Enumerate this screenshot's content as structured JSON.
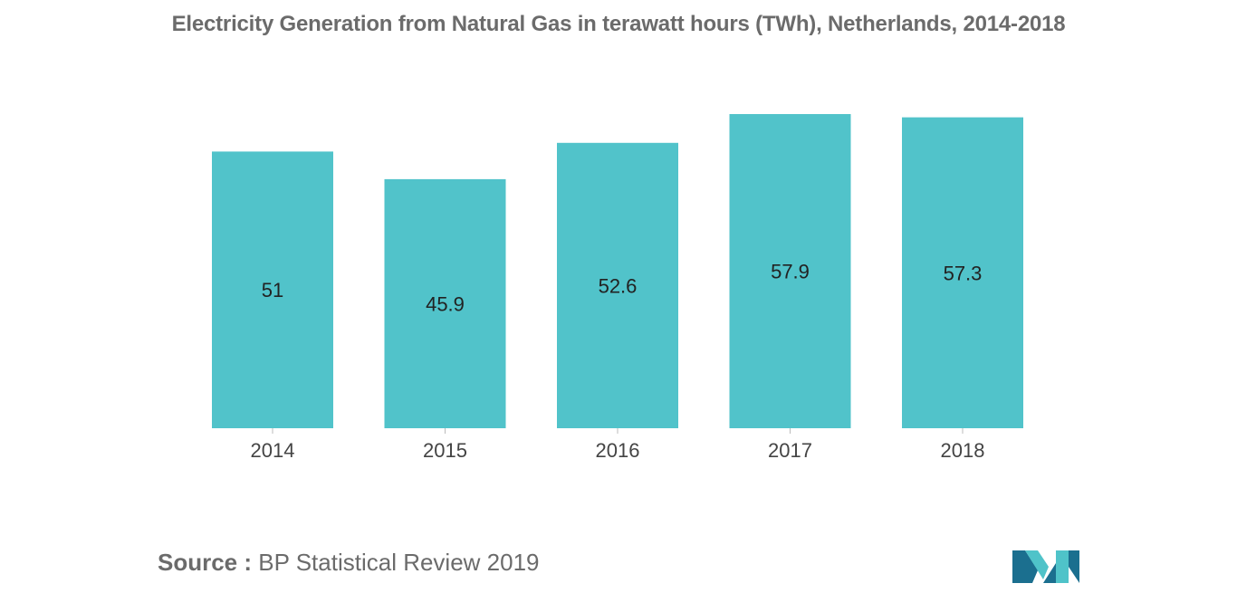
{
  "title": "Electricity Generation from Natural Gas in terawatt hours (TWh), Netherlands, 2014-2018",
  "source": {
    "prefix": "Source :",
    "text": "BP Statistical Review 2019"
  },
  "logo": {
    "icon": "mordor-intelligence-logo",
    "colors": [
      "#1b6f8f",
      "#4fc3c9"
    ]
  },
  "chart_data": {
    "type": "bar",
    "categories": [
      "2014",
      "2015",
      "2016",
      "2017",
      "2018"
    ],
    "values": [
      51,
      45.9,
      52.6,
      57.9,
      57.3
    ],
    "data_labels": [
      "51",
      "45.9",
      "52.6",
      "57.9",
      "57.3"
    ],
    "title": "Electricity Generation from Natural Gas in terawatt hours (TWh), Netherlands, 2014-2018",
    "xlabel": "",
    "ylabel": "",
    "ylim": [
      0,
      57.9
    ],
    "grid": false,
    "legend": "none",
    "bar_color": "#51c3ca"
  }
}
